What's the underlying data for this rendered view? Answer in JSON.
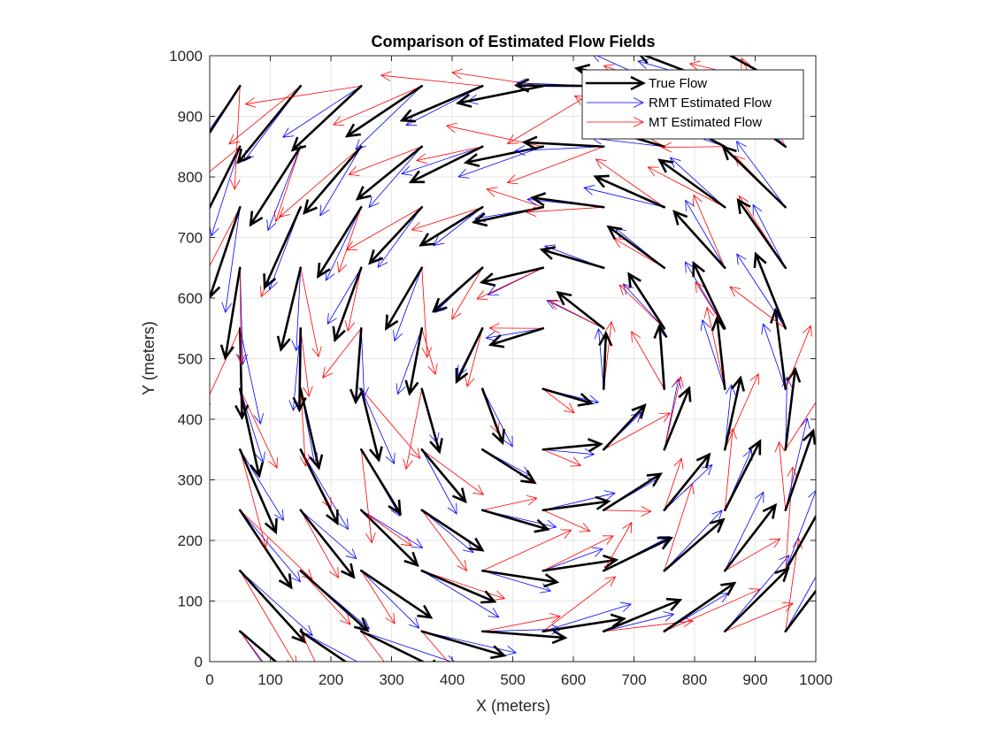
{
  "chart_data": {
    "type": "quiver",
    "title": "Comparison of Estimated Flow Fields",
    "xlabel": "X (meters)",
    "ylabel": "Y (meters)",
    "xlim": [
      0,
      1000
    ],
    "ylim": [
      0,
      1000
    ],
    "xticks": [
      0,
      100,
      200,
      300,
      400,
      500,
      600,
      700,
      800,
      900,
      1000
    ],
    "yticks": [
      0,
      100,
      200,
      300,
      400,
      500,
      600,
      700,
      800,
      900,
      1000
    ],
    "grid": true,
    "legend_position": "top-right",
    "field": {
      "center": [
        560,
        470
      ],
      "grid_start": 50,
      "grid_step": 100,
      "grid_count": 10
    },
    "series": [
      {
        "name": "True Flow",
        "color": "#000000",
        "style": "thick"
      },
      {
        "name": "RMT Estimated Flow",
        "color": "#0000ff",
        "style": "thin"
      },
      {
        "name": "MT Estimated Flow",
        "color": "#ff0000",
        "style": "thin"
      }
    ]
  }
}
